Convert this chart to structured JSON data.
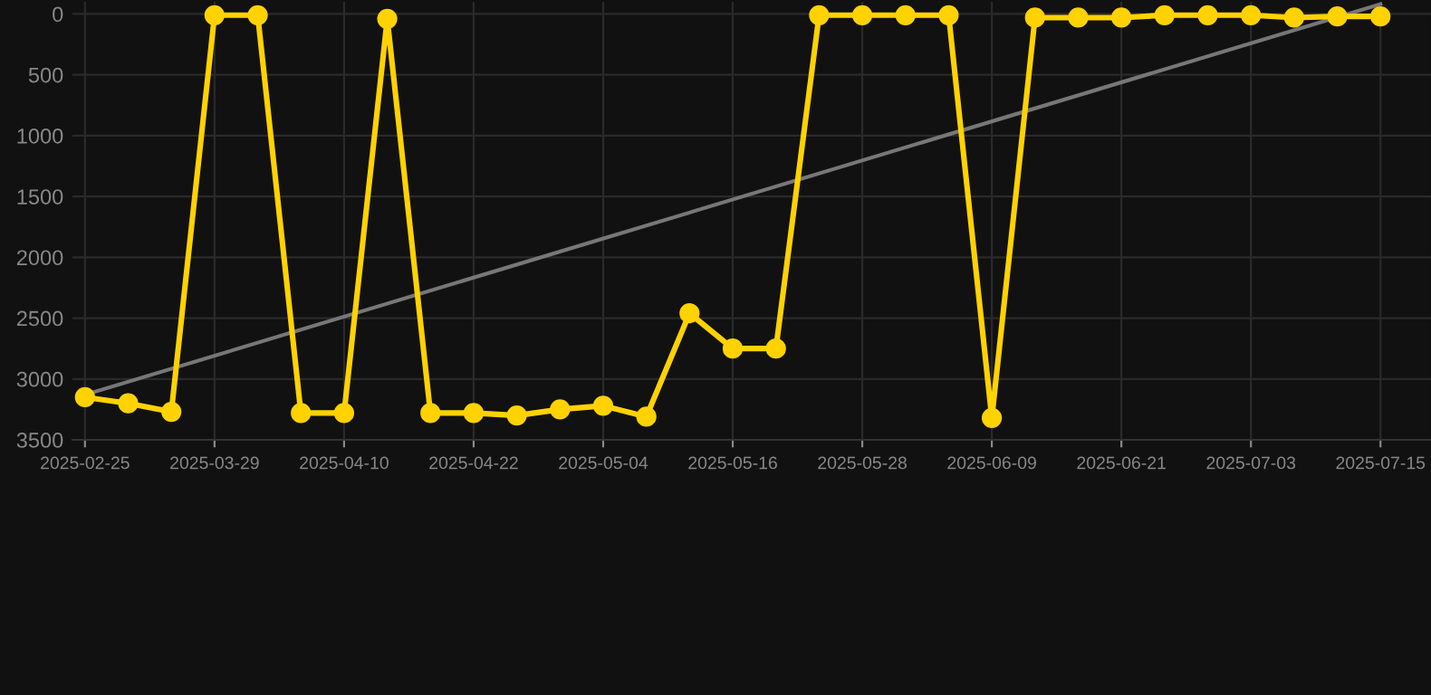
{
  "chart_data": {
    "type": "line",
    "categories": [
      "2025-02-25",
      null,
      null,
      "2025-03-29",
      null,
      null,
      "2025-04-10",
      null,
      null,
      "2025-04-22",
      null,
      null,
      "2025-05-04",
      null,
      null,
      "2025-05-16",
      null,
      null,
      "2025-05-28",
      null,
      null,
      "2025-06-09",
      null,
      null,
      "2025-06-21",
      null,
      null,
      "2025-07-03",
      null,
      null,
      "2025-07-15"
    ],
    "series": [
      {
        "color": "#ffd200",
        "marker": "circle",
        "values": [
          3150,
          3200,
          3270,
          10,
          10,
          3280,
          3280,
          40,
          3280,
          3280,
          3300,
          3250,
          3220,
          3310,
          2460,
          2750,
          2750,
          10,
          10,
          10,
          10,
          3320,
          30,
          30,
          30,
          10,
          10,
          10,
          30,
          20,
          20
        ]
      },
      {
        "color": "#777777",
        "marker": "none",
        "values": [
          3130,
          null,
          null,
          null,
          null,
          null,
          null,
          null,
          null,
          null,
          null,
          null,
          null,
          null,
          null,
          null,
          null,
          null,
          null,
          null,
          null,
          null,
          null,
          null,
          null,
          null,
          null,
          null,
          null,
          null,
          -80
        ]
      }
    ],
    "ylim": [
      3500,
      -100
    ],
    "yticks": [
      0,
      500,
      1000,
      1500,
      2000,
      2500,
      3000,
      3500
    ],
    "grid": true,
    "line_style": "solid"
  }
}
